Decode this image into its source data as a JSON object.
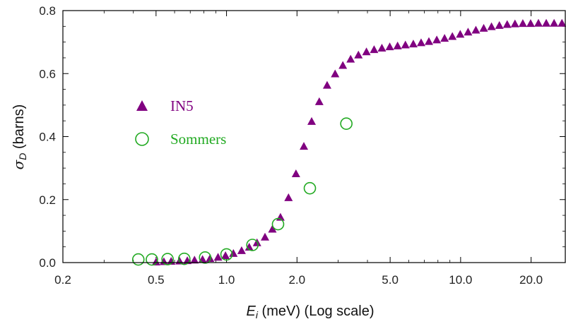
{
  "chart_data": {
    "type": "scatter",
    "xlabel_symbol": "E",
    "xlabel_subscript": "i",
    "xlabel_rest": " (meV) (Log scale)",
    "ylabel_symbol": "σ",
    "ylabel_subscript": "D",
    "ylabel_rest": " (barns)",
    "x_scale": "log",
    "xlim": [
      0.2,
      28
    ],
    "ylim": [
      0,
      0.8
    ],
    "x_ticks": [
      {
        "value": 0.2,
        "label": "0.2"
      },
      {
        "value": 0.5,
        "label": "0.5"
      },
      {
        "value": 1.0,
        "label": "1.0"
      },
      {
        "value": 2.0,
        "label": "2.0"
      },
      {
        "value": 5.0,
        "label": "5.0"
      },
      {
        "value": 10.0,
        "label": "10.0"
      },
      {
        "value": 20.0,
        "label": "20.0"
      }
    ],
    "y_ticks": [
      {
        "value": 0.0,
        "label": "0.0"
      },
      {
        "value": 0.2,
        "label": "0.2"
      },
      {
        "value": 0.4,
        "label": "0.4"
      },
      {
        "value": 0.6,
        "label": "0.6"
      },
      {
        "value": 0.8,
        "label": "0.8"
      }
    ],
    "grid": false,
    "legend_position": "center-left",
    "series": [
      {
        "name": "IN5",
        "marker": "filled-triangle",
        "color": "#800080",
        "x": [
          0.5,
          0.54,
          0.58,
          0.63,
          0.68,
          0.73,
          0.79,
          0.85,
          0.92,
          0.99,
          1.07,
          1.16,
          1.25,
          1.35,
          1.46,
          1.57,
          1.7,
          1.84,
          1.98,
          2.14,
          2.31,
          2.49,
          2.69,
          2.91,
          3.14,
          3.39,
          3.66,
          3.96,
          4.27,
          4.61,
          4.98,
          5.38,
          5.81,
          6.28,
          6.78,
          7.32,
          7.91,
          8.54,
          9.22,
          9.96,
          10.76,
          11.62,
          12.55,
          13.55,
          14.64,
          15.81,
          17.07,
          18.44,
          19.91,
          21.5,
          23.22,
          25.08,
          27.09
        ],
        "y": [
          0.001,
          0.002,
          0.003,
          0.004,
          0.005,
          0.007,
          0.009,
          0.012,
          0.016,
          0.021,
          0.028,
          0.037,
          0.048,
          0.062,
          0.08,
          0.105,
          0.143,
          0.205,
          0.281,
          0.368,
          0.447,
          0.51,
          0.562,
          0.598,
          0.625,
          0.645,
          0.658,
          0.668,
          0.675,
          0.68,
          0.684,
          0.687,
          0.69,
          0.693,
          0.697,
          0.701,
          0.706,
          0.711,
          0.717,
          0.724,
          0.731,
          0.737,
          0.743,
          0.748,
          0.752,
          0.755,
          0.757,
          0.758,
          0.758,
          0.759,
          0.759,
          0.759,
          0.759
        ]
      },
      {
        "name": "Sommers",
        "marker": "open-circle",
        "color": "#22aa22",
        "x": [
          0.42,
          0.48,
          0.56,
          0.66,
          0.81,
          1.0,
          1.29,
          1.66,
          2.27,
          3.25
        ],
        "y": [
          0.01,
          0.01,
          0.011,
          0.012,
          0.016,
          0.026,
          0.056,
          0.122,
          0.236,
          0.441
        ]
      }
    ]
  }
}
